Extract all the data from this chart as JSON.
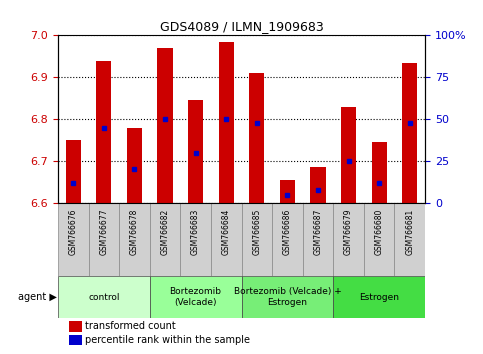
{
  "title": "GDS4089 / ILMN_1909683",
  "samples": [
    "GSM766676",
    "GSM766677",
    "GSM766678",
    "GSM766682",
    "GSM766683",
    "GSM766684",
    "GSM766685",
    "GSM766686",
    "GSM766687",
    "GSM766679",
    "GSM766680",
    "GSM766681"
  ],
  "transformed_counts": [
    6.75,
    6.94,
    6.78,
    6.97,
    6.845,
    6.985,
    6.91,
    6.655,
    6.685,
    6.83,
    6.745,
    6.935
  ],
  "percentile_ranks": [
    12,
    45,
    20,
    50,
    30,
    50,
    48,
    5,
    8,
    25,
    12,
    48
  ],
  "y_min": 6.6,
  "y_max": 7.0,
  "y_ticks": [
    6.6,
    6.7,
    6.8,
    6.9,
    7.0
  ],
  "right_y_ticks": [
    0,
    25,
    50,
    75,
    100
  ],
  "right_y_labels": [
    "0",
    "25",
    "50",
    "75",
    "100%"
  ],
  "groups": [
    {
      "label": "control",
      "start": 0,
      "end": 3,
      "color": "#ccffcc"
    },
    {
      "label": "Bortezomib\n(Velcade)",
      "start": 3,
      "end": 6,
      "color": "#99ff99"
    },
    {
      "label": "Bortezomib (Velcade) +\nEstrogen",
      "start": 6,
      "end": 9,
      "color": "#77ee77"
    },
    {
      "label": "Estrogen",
      "start": 9,
      "end": 12,
      "color": "#44dd44"
    }
  ],
  "bar_color": "#cc0000",
  "percentile_color": "#0000cc",
  "bar_width": 0.5,
  "left_tick_color": "#cc0000",
  "right_tick_color": "#0000cc",
  "sample_cell_color": "#d0d0d0",
  "agent_label": "agent",
  "legend_items": [
    {
      "color": "#cc0000",
      "label": "transformed count"
    },
    {
      "color": "#0000cc",
      "label": "percentile rank within the sample"
    }
  ]
}
